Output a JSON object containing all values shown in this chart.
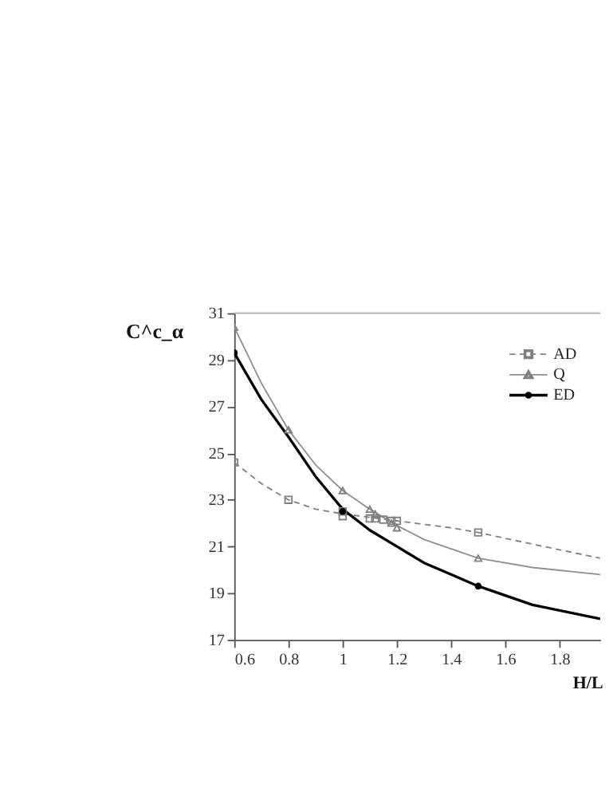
{
  "chart_data": {
    "type": "scatter",
    "xlabel": "H/L",
    "ylabel": "C^c_α",
    "xlim": [
      0.6,
      1.95
    ],
    "ylim": [
      17,
      31
    ],
    "xticks": [
      0.6,
      0.8,
      1,
      1.2,
      1.4,
      1.6,
      1.8
    ],
    "yticks": [
      17,
      19,
      21,
      23,
      25,
      27,
      29,
      31
    ],
    "grid": false,
    "legend": "top right",
    "series": [
      {
        "name": "AD",
        "marker": "square",
        "color": "#808080",
        "x": [
          0.6,
          0.8,
          1.0,
          1.0,
          1.1,
          1.12,
          1.15,
          1.18,
          1.2,
          1.5
        ],
        "values": [
          24.6,
          23.0,
          22.5,
          22.3,
          22.2,
          22.2,
          22.15,
          22.1,
          22.1,
          21.6
        ]
      },
      {
        "name": "Q",
        "marker": "triangle",
        "color": "#808080",
        "x": [
          0.6,
          0.8,
          1.0,
          1.1,
          1.12,
          1.18,
          1.2,
          1.5
        ],
        "values": [
          30.4,
          26.0,
          23.4,
          22.6,
          22.4,
          22.0,
          21.8,
          20.5
        ]
      },
      {
        "name": "ED",
        "marker": "circle",
        "color": "#000000",
        "x": [
          0.6,
          1.0,
          1.5
        ],
        "values": [
          29.3,
          22.5,
          19.3
        ]
      },
      {
        "type": "line",
        "line_style": "dashed",
        "color": "#808080",
        "x": [
          0.6,
          0.7,
          0.8,
          0.9,
          1.0,
          1.2,
          1.4,
          1.5,
          1.7,
          1.95
        ],
        "values": [
          24.6,
          23.7,
          23.0,
          22.6,
          22.4,
          22.1,
          21.8,
          21.6,
          21.1,
          20.5
        ]
      },
      {
        "type": "line",
        "line_style": "solid",
        "color": "#909090",
        "x": [
          0.6,
          0.7,
          0.8,
          0.9,
          1.0,
          1.1,
          1.2,
          1.3,
          1.4,
          1.5,
          1.7,
          1.95
        ],
        "values": [
          30.4,
          28.0,
          26.0,
          24.5,
          23.4,
          22.6,
          21.9,
          21.3,
          20.9,
          20.5,
          20.1,
          19.8
        ]
      },
      {
        "type": "line",
        "line_style": "solid",
        "color": "#000000",
        "x": [
          0.6,
          0.7,
          0.8,
          0.9,
          1.0,
          1.1,
          1.2,
          1.3,
          1.4,
          1.5,
          1.7,
          1.95
        ],
        "values": [
          29.3,
          27.3,
          25.7,
          24.0,
          22.6,
          21.7,
          21.0,
          20.3,
          19.8,
          19.3,
          18.5,
          17.9
        ]
      }
    ]
  }
}
